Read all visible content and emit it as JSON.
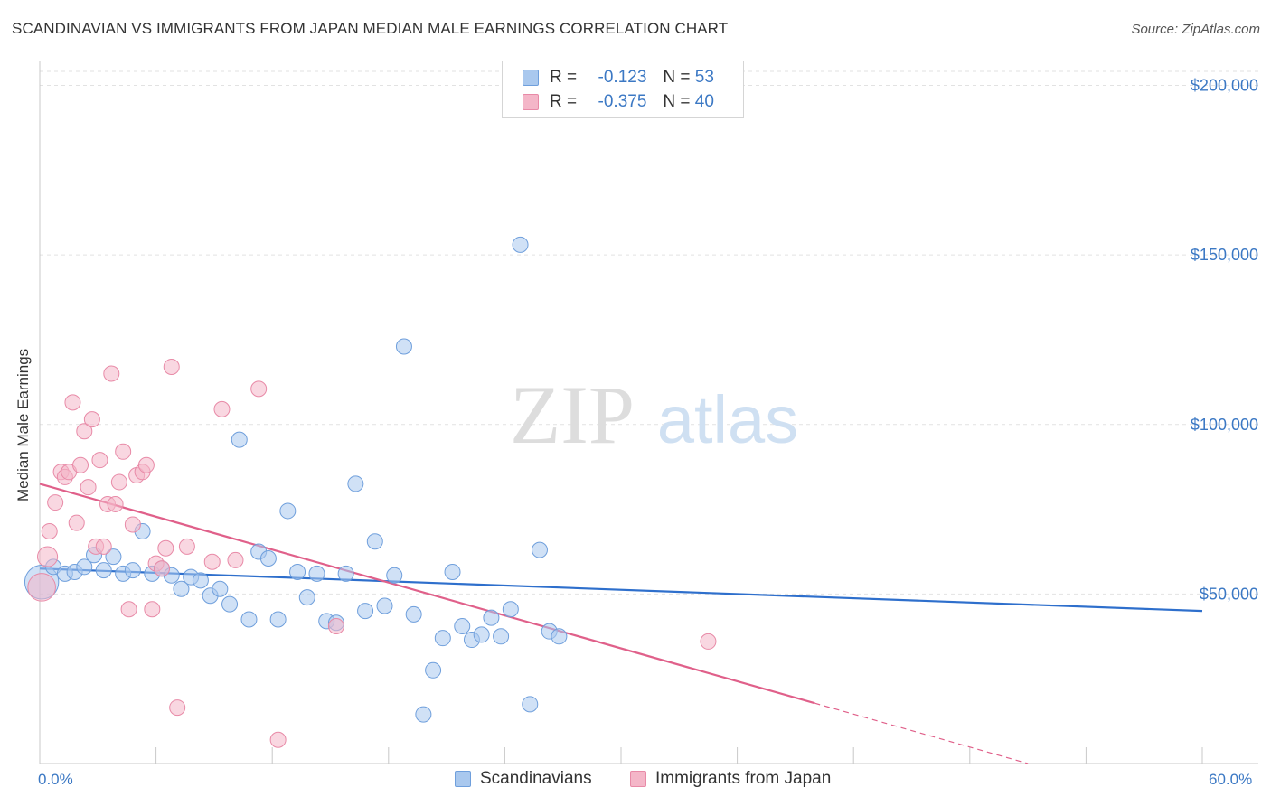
{
  "title": "SCANDINAVIAN VS IMMIGRANTS FROM JAPAN MEDIAN MALE EARNINGS CORRELATION CHART",
  "source": "Source: ZipAtlas.com",
  "watermark": {
    "zip": "ZIP",
    "atlas": "atlas"
  },
  "legend_stats": [
    {
      "r_label": "R =",
      "r_value": "-0.123",
      "n_label": "N =",
      "n_value": "53",
      "color": "#a9c8ee"
    },
    {
      "r_label": "R =",
      "r_value": "-0.375",
      "n_label": "N =",
      "n_value": "40",
      "color": "#f4b6c8"
    }
  ],
  "bottom_legend": [
    {
      "label": "Scandinavians",
      "color": "#a9c8ee"
    },
    {
      "label": "Immigrants from Japan",
      "color": "#f4b6c8"
    }
  ],
  "chart_data": {
    "type": "scatter",
    "title": "SCANDINAVIAN VS IMMIGRANTS FROM JAPAN MEDIAN MALE EARNINGS CORRELATION CHART",
    "xlabel": "",
    "ylabel": "Median Male Earnings",
    "xlim": [
      0,
      60
    ],
    "ylim": [
      0,
      210000
    ],
    "x_tick_labels": [
      "0.0%",
      "60.0%"
    ],
    "y_ticks": [
      50000,
      100000,
      150000,
      200000
    ],
    "y_tick_labels": [
      "$50,000",
      "$100,000",
      "$150,000",
      "$200,000"
    ],
    "grid": true,
    "series": [
      {
        "name": "Scandinavians",
        "fill": "#a9c8ee",
        "stroke": "#6f9fdc",
        "line_color": "#2e6fcc",
        "points": [
          [
            0.1,
            53500,
            2.2
          ],
          [
            0.7,
            58000,
            1
          ],
          [
            1.3,
            56000,
            1
          ],
          [
            1.8,
            56500,
            1
          ],
          [
            2.3,
            58000,
            1
          ],
          [
            2.8,
            61500,
            1
          ],
          [
            3.3,
            57000,
            1
          ],
          [
            3.8,
            61000,
            1
          ],
          [
            4.3,
            56000,
            1
          ],
          [
            4.8,
            57000,
            1
          ],
          [
            5.3,
            68500,
            1
          ],
          [
            5.8,
            56000,
            1
          ],
          [
            6.3,
            57500,
            1
          ],
          [
            6.8,
            55500,
            1
          ],
          [
            7.3,
            51500,
            1
          ],
          [
            7.8,
            55000,
            1
          ],
          [
            8.3,
            54000,
            1
          ],
          [
            8.8,
            49500,
            1
          ],
          [
            9.3,
            51500,
            1
          ],
          [
            9.8,
            47000,
            1
          ],
          [
            10.3,
            95500,
            1
          ],
          [
            10.8,
            42500,
            1
          ],
          [
            11.3,
            62500,
            1
          ],
          [
            11.8,
            60500,
            1
          ],
          [
            12.3,
            42500,
            1
          ],
          [
            12.8,
            74500,
            1
          ],
          [
            13.3,
            56500,
            1
          ],
          [
            13.8,
            49000,
            1
          ],
          [
            14.3,
            56000,
            1
          ],
          [
            14.8,
            42000,
            1
          ],
          [
            15.3,
            41500,
            1
          ],
          [
            15.8,
            56000,
            1
          ],
          [
            16.3,
            82500,
            1
          ],
          [
            16.8,
            45000,
            1
          ],
          [
            17.3,
            65500,
            1
          ],
          [
            17.8,
            46500,
            1
          ],
          [
            18.3,
            55500,
            1
          ],
          [
            18.8,
            123000,
            1
          ],
          [
            19.3,
            44000,
            1
          ],
          [
            19.8,
            14500,
            1
          ],
          [
            20.3,
            27500,
            1
          ],
          [
            20.8,
            37000,
            1
          ],
          [
            21.3,
            56500,
            1
          ],
          [
            21.8,
            40500,
            1
          ],
          [
            22.3,
            36500,
            1
          ],
          [
            22.8,
            38000,
            1
          ],
          [
            23.3,
            43000,
            1
          ],
          [
            23.8,
            37500,
            1
          ],
          [
            24.3,
            45500,
            1
          ],
          [
            24.8,
            153000,
            1
          ],
          [
            25.3,
            17500,
            1
          ],
          [
            25.8,
            63000,
            1
          ],
          [
            26.3,
            39000,
            1
          ],
          [
            26.8,
            37500,
            1
          ]
        ],
        "trend": {
          "x": [
            0,
            60
          ],
          "y": [
            57500,
            45000
          ],
          "dashed_from_x": null
        }
      },
      {
        "name": "Immigrants from Japan",
        "fill": "#f4b6c8",
        "stroke": "#e88aa7",
        "line_color": "#e0608a",
        "points": [
          [
            0.1,
            52000,
            1.8
          ],
          [
            0.4,
            61000,
            1.3
          ],
          [
            0.5,
            68500,
            1
          ],
          [
            0.8,
            77000,
            1
          ],
          [
            1.1,
            86000,
            1
          ],
          [
            1.3,
            84500,
            1
          ],
          [
            1.5,
            86000,
            1
          ],
          [
            1.7,
            106500,
            1
          ],
          [
            1.9,
            71000,
            1
          ],
          [
            2.1,
            88000,
            1
          ],
          [
            2.3,
            98000,
            1
          ],
          [
            2.5,
            81500,
            1
          ],
          [
            2.7,
            101500,
            1
          ],
          [
            2.9,
            64000,
            1
          ],
          [
            3.1,
            89500,
            1
          ],
          [
            3.3,
            64000,
            1
          ],
          [
            3.5,
            76500,
            1
          ],
          [
            3.7,
            115000,
            1
          ],
          [
            3.9,
            76500,
            1
          ],
          [
            4.1,
            83000,
            1
          ],
          [
            4.3,
            92000,
            1
          ],
          [
            4.6,
            45500,
            1
          ],
          [
            4.8,
            70500,
            1
          ],
          [
            5.0,
            85000,
            1
          ],
          [
            5.3,
            86000,
            1
          ],
          [
            5.5,
            88000,
            1
          ],
          [
            5.8,
            45500,
            1
          ],
          [
            6.0,
            59000,
            1
          ],
          [
            6.3,
            57500,
            1
          ],
          [
            6.5,
            63500,
            1
          ],
          [
            6.8,
            117000,
            1
          ],
          [
            7.1,
            16500,
            1
          ],
          [
            7.6,
            64000,
            1
          ],
          [
            8.9,
            59500,
            1
          ],
          [
            9.4,
            104500,
            1
          ],
          [
            10.1,
            60000,
            1
          ],
          [
            11.3,
            110500,
            1
          ],
          [
            12.3,
            7000,
            1
          ],
          [
            15.3,
            40500,
            1
          ],
          [
            34.5,
            36000,
            1
          ]
        ],
        "trend": {
          "x": [
            0,
            51
          ],
          "y": [
            82500,
            0
          ],
          "dashed_from_x": 40
        }
      }
    ]
  }
}
